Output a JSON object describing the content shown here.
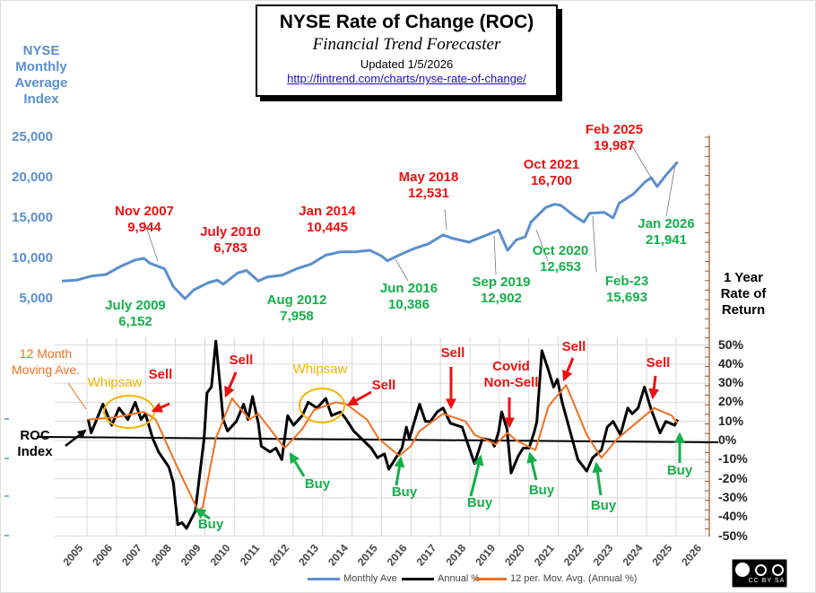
{
  "title": {
    "main": "NYSE  Rate of Change (ROC)",
    "sub": "Financial Trend Forecaster",
    "updated": "Updated  1/5/2026",
    "url": "http://fintrend.com/charts/nyse-rate-of-change/"
  },
  "labels": {
    "left_top": [
      "NYSE",
      "Monthly",
      "Average",
      "Index"
    ],
    "left_bottom": [
      "ROC",
      "Index"
    ],
    "right": [
      "1 Year",
      "Rate of",
      "Return"
    ]
  },
  "colors": {
    "monthly": "#5a8fd0",
    "annual": "#000000",
    "ma": "#f07020",
    "axis_right": "#a0521a",
    "sell": "#ee1111",
    "buy": "#14b04a",
    "whipsaw": "#f5b400"
  },
  "chart_data": {
    "type": "line",
    "x_ticks": [
      "2005",
      "2006",
      "2007",
      "2008",
      "2009",
      "2010",
      "2011",
      "2012",
      "2013",
      "2014",
      "2015",
      "2016",
      "2017",
      "2018",
      "2019",
      "2020",
      "2021",
      "2022",
      "2023",
      "2024",
      "2025",
      "2026"
    ],
    "y_left": {
      "ticks": [
        "25,000",
        "20,000",
        "15,000",
        "10,000",
        "5,000"
      ],
      "values": [
        25000,
        20000,
        15000,
        10000,
        5000
      ]
    },
    "y_right": {
      "ticks": [
        "50%",
        "40%",
        "30%",
        "20%",
        "10%",
        "0%",
        "-10%",
        "-20%",
        "-30%",
        "-40%",
        "-50%"
      ],
      "range": [
        -50,
        50
      ]
    },
    "grid": true,
    "legend": {
      "position": "bottom",
      "items": [
        "Monthly Ave",
        "Annual %",
        "12 per. Mov. Avg. (Annual %)"
      ]
    },
    "series": [
      {
        "name": "Monthly Ave",
        "points": [
          [
            2005.0,
            7200
          ],
          [
            2005.5,
            7300
          ],
          [
            2006.0,
            7800
          ],
          [
            2006.5,
            8000
          ],
          [
            2007.0,
            9000
          ],
          [
            2007.5,
            9800
          ],
          [
            2007.8,
            10000
          ],
          [
            2008.0,
            9400
          ],
          [
            2008.5,
            8700
          ],
          [
            2008.8,
            6500
          ],
          [
            2009.2,
            5000
          ],
          [
            2009.5,
            6100
          ],
          [
            2010.0,
            7000
          ],
          [
            2010.3,
            7300
          ],
          [
            2010.5,
            6800
          ],
          [
            2011.0,
            8200
          ],
          [
            2011.3,
            8500
          ],
          [
            2011.7,
            7200
          ],
          [
            2012.0,
            7700
          ],
          [
            2012.5,
            7900
          ],
          [
            2013.0,
            8700
          ],
          [
            2013.5,
            9300
          ],
          [
            2014.0,
            10400
          ],
          [
            2014.5,
            10800
          ],
          [
            2015.0,
            10800
          ],
          [
            2015.5,
            11000
          ],
          [
            2015.9,
            10300
          ],
          [
            2016.1,
            9700
          ],
          [
            2016.5,
            10400
          ],
          [
            2017.0,
            11200
          ],
          [
            2017.5,
            11800
          ],
          [
            2018.0,
            12900
          ],
          [
            2018.3,
            12500
          ],
          [
            2018.9,
            12000
          ],
          [
            2019.0,
            12200
          ],
          [
            2019.5,
            12900
          ],
          [
            2019.9,
            13500
          ],
          [
            2020.2,
            11000
          ],
          [
            2020.5,
            12300
          ],
          [
            2020.8,
            12650
          ],
          [
            2021.0,
            14500
          ],
          [
            2021.5,
            16300
          ],
          [
            2021.8,
            16700
          ],
          [
            2022.0,
            16600
          ],
          [
            2022.5,
            15200
          ],
          [
            2022.8,
            14500
          ],
          [
            2023.0,
            15600
          ],
          [
            2023.5,
            15700
          ],
          [
            2023.8,
            15000
          ],
          [
            2024.0,
            16800
          ],
          [
            2024.5,
            18000
          ],
          [
            2024.9,
            19500
          ],
          [
            2025.1,
            19987
          ],
          [
            2025.3,
            18900
          ],
          [
            2025.6,
            20300
          ],
          [
            2026.0,
            21941
          ]
        ]
      },
      {
        "name": "Annual %",
        "points": [
          [
            2005.9,
            11
          ],
          [
            2006.0,
            4
          ],
          [
            2006.4,
            19
          ],
          [
            2006.7,
            8
          ],
          [
            2006.95,
            17
          ],
          [
            2007.25,
            11
          ],
          [
            2007.5,
            20
          ],
          [
            2007.7,
            11
          ],
          [
            2007.85,
            14
          ],
          [
            2008.1,
            1
          ],
          [
            2008.3,
            -6
          ],
          [
            2008.65,
            -14
          ],
          [
            2008.8,
            -22
          ],
          [
            2008.95,
            -44
          ],
          [
            2009.1,
            -43
          ],
          [
            2009.25,
            -46
          ],
          [
            2009.55,
            -37
          ],
          [
            2009.85,
            1
          ],
          [
            2009.95,
            25
          ],
          [
            2010.1,
            28
          ],
          [
            2010.25,
            52
          ],
          [
            2010.4,
            28
          ],
          [
            2010.5,
            11
          ],
          [
            2010.65,
            5
          ],
          [
            2010.95,
            10
          ],
          [
            2011.2,
            19
          ],
          [
            2011.35,
            11
          ],
          [
            2011.5,
            23
          ],
          [
            2011.7,
            9
          ],
          [
            2011.8,
            -3
          ],
          [
            2012.1,
            -6
          ],
          [
            2012.3,
            -4
          ],
          [
            2012.5,
            -10
          ],
          [
            2012.7,
            13
          ],
          [
            2012.9,
            8
          ],
          [
            2013.2,
            13
          ],
          [
            2013.4,
            20
          ],
          [
            2013.7,
            17
          ],
          [
            2014.0,
            22
          ],
          [
            2014.2,
            13
          ],
          [
            2014.5,
            15
          ],
          [
            2014.7,
            11
          ],
          [
            2014.95,
            5
          ],
          [
            2015.55,
            -4
          ],
          [
            2015.76,
            -9
          ],
          [
            2016.0,
            -7
          ],
          [
            2016.15,
            -15
          ],
          [
            2016.6,
            -4
          ],
          [
            2016.75,
            7
          ],
          [
            2016.85,
            1
          ],
          [
            2017.2,
            19
          ],
          [
            2017.4,
            10
          ],
          [
            2017.57,
            10
          ],
          [
            2017.8,
            15
          ],
          [
            2018.0,
            17
          ],
          [
            2018.25,
            9
          ],
          [
            2018.65,
            7
          ],
          [
            2019.07,
            -12
          ],
          [
            2019.35,
            1
          ],
          [
            2019.65,
            0
          ],
          [
            2019.75,
            -3
          ],
          [
            2019.9,
            5
          ],
          [
            2020.0,
            15
          ],
          [
            2020.18,
            6
          ],
          [
            2020.32,
            -17
          ],
          [
            2020.57,
            -8
          ],
          [
            2020.73,
            -4
          ],
          [
            2020.93,
            -4
          ],
          [
            2021.1,
            4
          ],
          [
            2021.2,
            10
          ],
          [
            2021.37,
            47
          ],
          [
            2021.57,
            38
          ],
          [
            2021.77,
            28
          ],
          [
            2021.9,
            32
          ],
          [
            2022.06,
            20
          ],
          [
            2022.4,
            1
          ],
          [
            2022.6,
            -10
          ],
          [
            2022.9,
            -16
          ],
          [
            2023.1,
            -9
          ],
          [
            2023.4,
            -5
          ],
          [
            2023.6,
            7
          ],
          [
            2023.8,
            10
          ],
          [
            2024.05,
            3
          ],
          [
            2024.3,
            17
          ],
          [
            2024.45,
            14
          ],
          [
            2024.65,
            17
          ],
          [
            2024.87,
            28
          ],
          [
            2025.1,
            16
          ],
          [
            2025.4,
            4
          ],
          [
            2025.6,
            10
          ],
          [
            2025.9,
            8
          ],
          [
            2026.0,
            11
          ]
        ]
      },
      {
        "name": "12 per. Mov. Avg. (Annual %)",
        "points": [
          [
            2005.9,
            11
          ],
          [
            2006.8,
            12
          ],
          [
            2007.8,
            15
          ],
          [
            2008.2,
            11
          ],
          [
            2009.0,
            -16
          ],
          [
            2009.65,
            -37
          ],
          [
            2009.8,
            -35
          ],
          [
            2010.25,
            1
          ],
          [
            2010.8,
            22
          ],
          [
            2011.4,
            11
          ],
          [
            2011.7,
            14
          ],
          [
            2012.6,
            -4
          ],
          [
            2013.2,
            6
          ],
          [
            2013.6,
            16
          ],
          [
            2014.35,
            20
          ],
          [
            2014.7,
            19
          ],
          [
            2015.4,
            11
          ],
          [
            2015.8,
            1
          ],
          [
            2016.5,
            -8
          ],
          [
            2016.9,
            -3
          ],
          [
            2017.2,
            5
          ],
          [
            2018.0,
            14
          ],
          [
            2018.77,
            10
          ],
          [
            2019.07,
            3
          ],
          [
            2019.8,
            -2
          ],
          [
            2020.2,
            4
          ],
          [
            2020.5,
            0
          ],
          [
            2021.15,
            -5
          ],
          [
            2021.6,
            18
          ],
          [
            2022.2,
            29
          ],
          [
            2022.9,
            3
          ],
          [
            2023.4,
            -9
          ],
          [
            2023.95,
            1
          ],
          [
            2024.65,
            10
          ],
          [
            2025.2,
            17
          ],
          [
            2025.8,
            13
          ],
          [
            2026.0,
            9
          ]
        ]
      }
    ]
  },
  "annotations": {
    "peaks": [
      {
        "d": "Nov 2007",
        "v": "9,944"
      },
      {
        "d": "July 2010",
        "v": "6,783"
      },
      {
        "d": "Jan 2014",
        "v": "10,445"
      },
      {
        "d": "May 2018",
        "v": "12,531"
      },
      {
        "d": "Oct 2021",
        "v": "16,700"
      },
      {
        "d": "Feb 2025",
        "v": "19,987"
      }
    ],
    "troughs": [
      {
        "d": "July 2009",
        "v": "6,152"
      },
      {
        "d": "Aug 2012",
        "v": "7,958"
      },
      {
        "d": "Jun 2016",
        "v": "10,386"
      },
      {
        "d": "Sep 2019",
        "v": "12,902"
      },
      {
        "d": "Oct 2020",
        "v": "12,653"
      },
      {
        "d": "Feb-23",
        "v": "15,693"
      },
      {
        "d": "Jan 2026",
        "v": "21,941"
      }
    ],
    "ma_label": [
      "12 Month",
      "Moving Ave."
    ],
    "whipsaw": "Whipsaw",
    "sell": "Sell",
    "buy": "Buy",
    "covid": [
      "Covid",
      "Non-Sell"
    ]
  },
  "badge": "cc by sa"
}
